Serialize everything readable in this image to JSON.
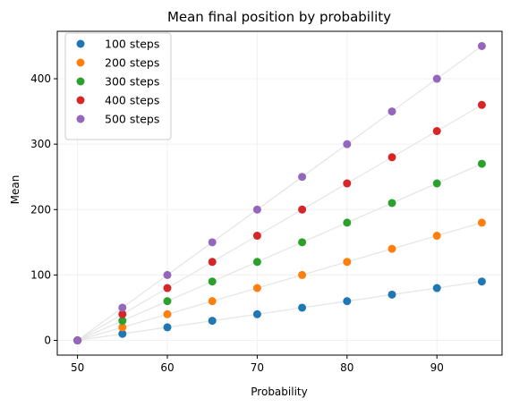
{
  "chart_data": {
    "type": "scatter",
    "title": "Mean final position by probability",
    "xlabel": "Probability",
    "ylabel": "Mean",
    "xlim": [
      47.75,
      97.25
    ],
    "ylim": [
      -22.5,
      472.5
    ],
    "xticks": [
      50,
      60,
      70,
      80,
      90
    ],
    "yticks": [
      0,
      100,
      200,
      300,
      400
    ],
    "grid": true,
    "legend_position": "top-left",
    "x": [
      50,
      55,
      60,
      65,
      70,
      75,
      80,
      85,
      90,
      95
    ],
    "series": [
      {
        "name": "100 steps",
        "color": "#1f77b4",
        "values": [
          0,
          10,
          20,
          30,
          40,
          50,
          60,
          70,
          80,
          90
        ]
      },
      {
        "name": "200 steps",
        "color": "#ff7f0e",
        "values": [
          0,
          20,
          40,
          60,
          80,
          100,
          120,
          140,
          160,
          180
        ]
      },
      {
        "name": "300 steps",
        "color": "#2ca02c",
        "values": [
          0,
          30,
          60,
          90,
          120,
          150,
          180,
          210,
          240,
          270
        ]
      },
      {
        "name": "400 steps",
        "color": "#d62728",
        "values": [
          0,
          40,
          80,
          120,
          160,
          200,
          240,
          280,
          320,
          360
        ]
      },
      {
        "name": "500 steps",
        "color": "#9467bd",
        "values": [
          0,
          50,
          100,
          150,
          200,
          250,
          300,
          350,
          400,
          450
        ]
      }
    ]
  }
}
